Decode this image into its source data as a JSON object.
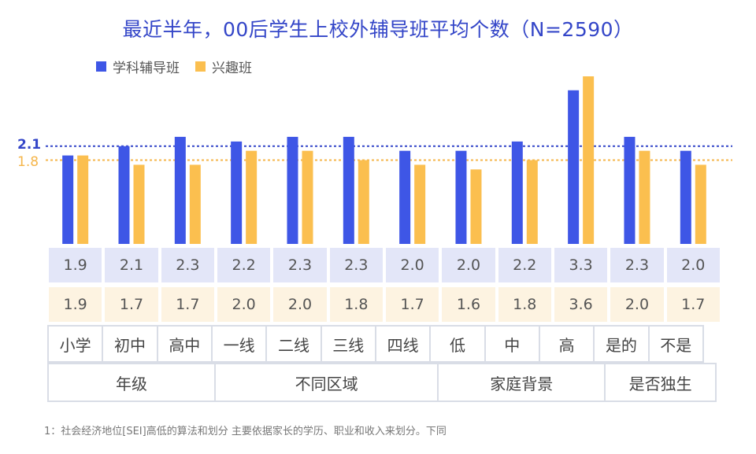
{
  "title": "最近半年，00后学生上校外辅导班平均个数（N=2590）",
  "legend": [
    {
      "label": "学科辅导班",
      "color": "#3e56e6"
    },
    {
      "label": "兴趣班",
      "color": "#fbbf4f"
    }
  ],
  "reference_lines": [
    {
      "label": "2.1",
      "value": 2.1,
      "color": "#3446c8"
    },
    {
      "label": "1.8",
      "value": 1.8,
      "color": "#f5b54a"
    }
  ],
  "footnote": "1：社会经济地位[SEI]高低的算法和划分 主要依据家长的学历、职业和收入来划分。下同",
  "groups": [
    {
      "label": "年级",
      "span": 3
    },
    {
      "label": "不同区域",
      "span": 4
    },
    {
      "label": "家庭背景",
      "span": 3
    },
    {
      "label": "是否独生",
      "span": 2
    }
  ],
  "chart_data": {
    "type": "bar",
    "title": "最近半年，00后学生上校外辅导班平均个数（N=2590）",
    "categories": [
      "小学",
      "初中",
      "高中",
      "一线",
      "二线",
      "三线",
      "四线",
      "低",
      "中",
      "高",
      "是的",
      "不是"
    ],
    "series": [
      {
        "name": "学科辅导班",
        "color": "#3e56e6",
        "values": [
          1.9,
          2.1,
          2.3,
          2.2,
          2.3,
          2.3,
          2.0,
          2.0,
          2.2,
          3.3,
          2.3,
          2.0
        ]
      },
      {
        "name": "兴趣班",
        "color": "#fbbf4f",
        "values": [
          1.9,
          1.7,
          1.7,
          2.0,
          2.0,
          1.8,
          1.7,
          1.6,
          1.8,
          3.6,
          2.0,
          1.7
        ]
      }
    ],
    "value_labels": {
      "学科辅导班": [
        "1.9",
        "2.1",
        "2.3",
        "2.2",
        "2.3",
        "2.3",
        "2.0",
        "2.0",
        "2.2",
        "3.3",
        "2.3",
        "2.0"
      ],
      "兴趣班": [
        "1.9",
        "1.7",
        "1.7",
        "2.0",
        "2.0",
        "1.8",
        "1.7",
        "1.6",
        "1.8",
        "3.6",
        "2.0",
        "1.7"
      ]
    },
    "ylim": [
      0,
      3.6
    ],
    "legend_position": "top-left",
    "grid": false
  }
}
